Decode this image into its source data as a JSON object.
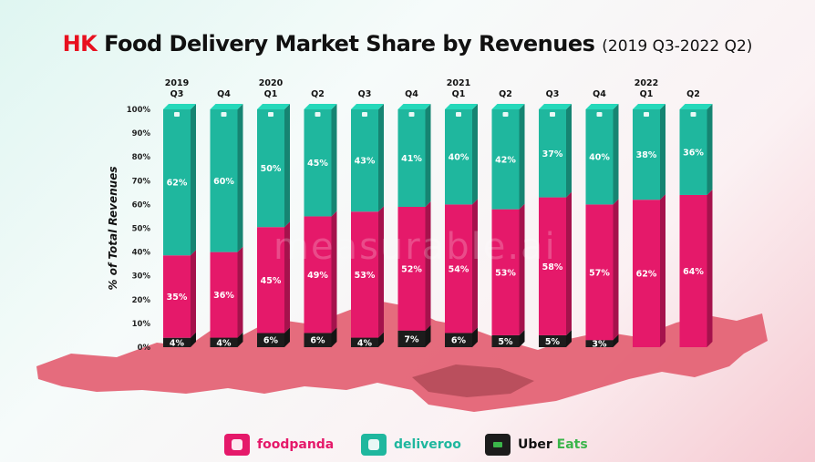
{
  "title": {
    "brand": "HK",
    "main": "Food Delivery Market Share by Revenues",
    "sub": "(2019 Q3-2022 Q2)"
  },
  "watermark": "measurable.ai",
  "colors": {
    "foodpanda": "#e5196a",
    "deliveroo": "#1fb79e",
    "ubereats": "#1c1c1c",
    "map": "#e36072"
  },
  "legend": [
    {
      "key": "foodpanda",
      "label": "foodpanda",
      "text_color": "#e5196a"
    },
    {
      "key": "deliveroo",
      "label": "deliveroo",
      "text_color": "#1fb79e"
    },
    {
      "key": "ubereats",
      "label": "Uber Eats",
      "text_color": "#111111"
    }
  ],
  "chart_data": {
    "type": "bar",
    "stacked": true,
    "title": "HK Food Delivery Market Share by Revenues (2019 Q3-2022 Q2)",
    "xlabel": "",
    "ylabel": "% of Total Revenues",
    "ylim": [
      0,
      100
    ],
    "yticks": [
      "0%",
      "10%",
      "20%",
      "30%",
      "40%",
      "50%",
      "60%",
      "70%",
      "80%",
      "90%",
      "100%"
    ],
    "categories": [
      {
        "year": "2019",
        "quarter": "Q3"
      },
      {
        "year": "",
        "quarter": "Q4"
      },
      {
        "year": "2020",
        "quarter": "Q1"
      },
      {
        "year": "",
        "quarter": "Q2"
      },
      {
        "year": "",
        "quarter": "Q3"
      },
      {
        "year": "",
        "quarter": "Q4"
      },
      {
        "year": "2021",
        "quarter": "Q1"
      },
      {
        "year": "",
        "quarter": "Q2"
      },
      {
        "year": "",
        "quarter": "Q3"
      },
      {
        "year": "",
        "quarter": "Q4"
      },
      {
        "year": "2022",
        "quarter": "Q1"
      },
      {
        "year": "",
        "quarter": "Q2"
      }
    ],
    "series": [
      {
        "name": "Uber Eats",
        "key": "ubereats",
        "values": [
          4,
          4,
          6,
          6,
          4,
          7,
          6,
          5,
          5,
          3,
          null,
          null
        ]
      },
      {
        "name": "foodpanda",
        "key": "foodpanda",
        "values": [
          35,
          36,
          45,
          49,
          53,
          52,
          54,
          53,
          58,
          57,
          62,
          64
        ]
      },
      {
        "name": "deliveroo",
        "key": "deliveroo",
        "values": [
          62,
          60,
          50,
          45,
          43,
          41,
          40,
          42,
          37,
          40,
          38,
          36
        ]
      }
    ]
  }
}
